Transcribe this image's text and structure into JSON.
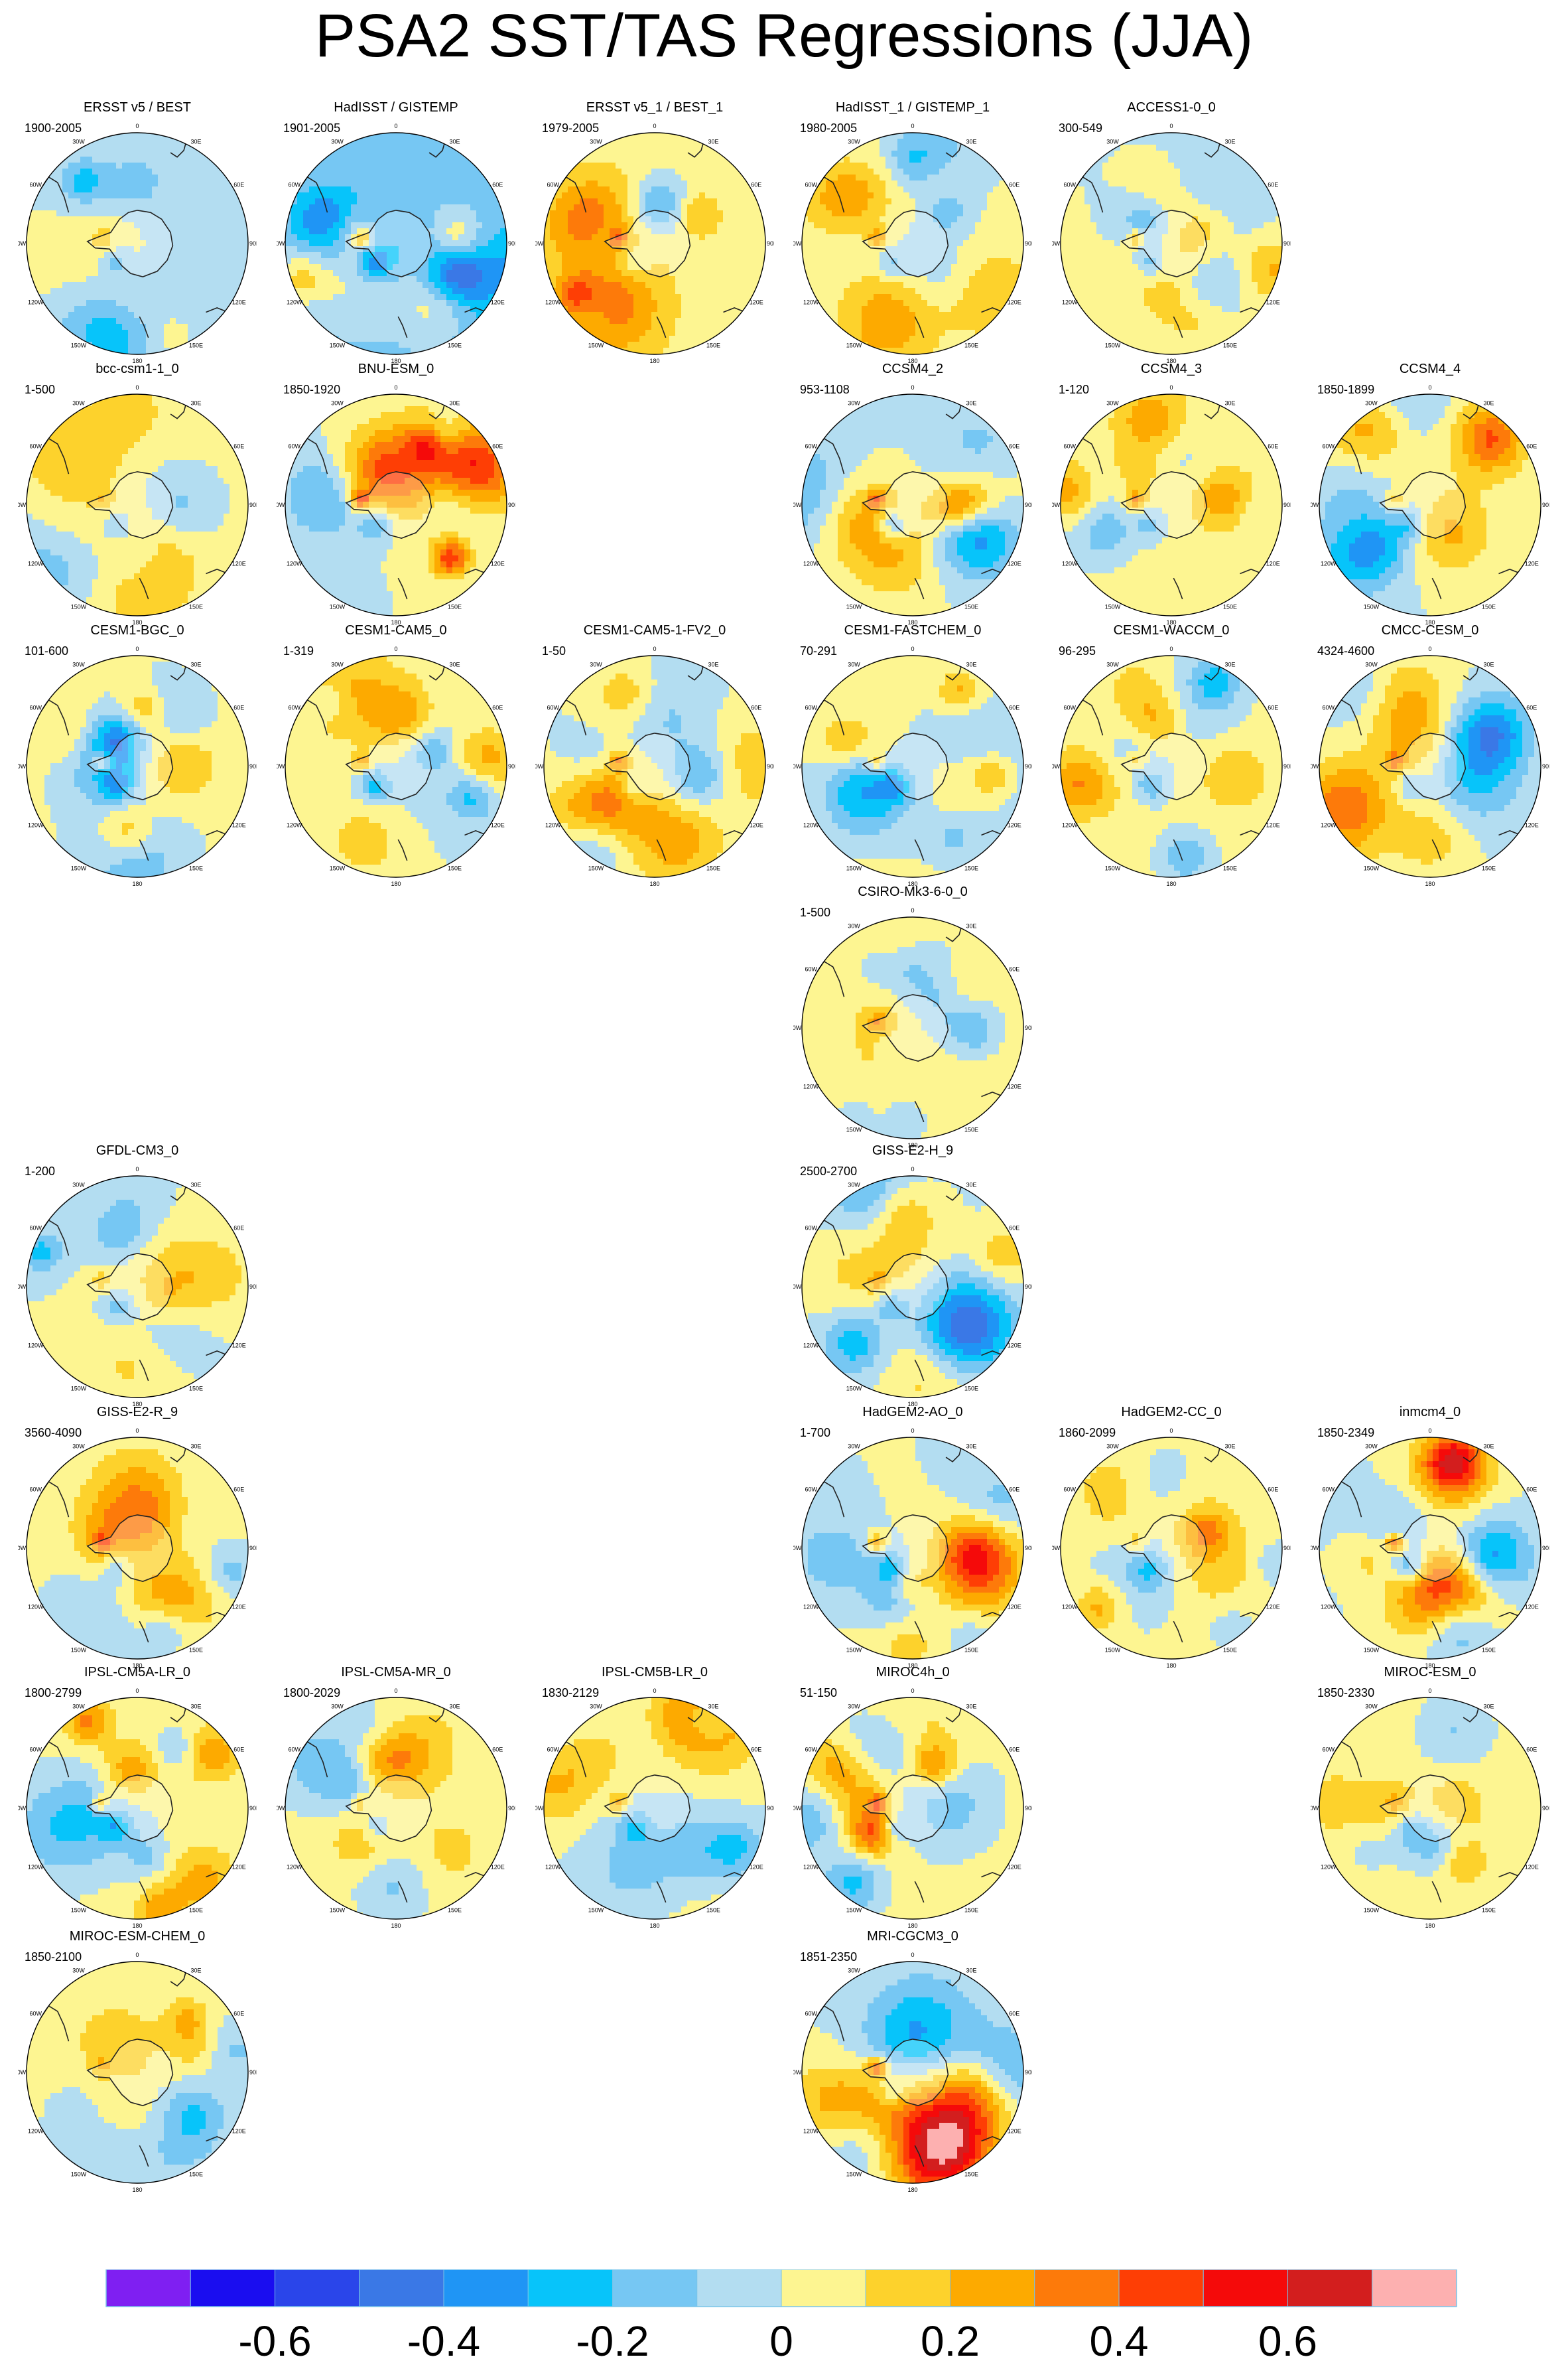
{
  "title": "PSA2 SST/TAS Regressions (JJA)",
  "chart_data": {
    "type": "heatmap",
    "projection": "south-polar-stereographic",
    "title": "PSA2 SST/TAS Regressions (JJA)",
    "lon_labels": [
      "0",
      "30E",
      "60E",
      "90E",
      "120E",
      "150E",
      "180",
      "150W",
      "120W",
      "90W",
      "60W",
      "30W"
    ],
    "colorbar": {
      "tick_labels": [
        "-0.6",
        "-0.4",
        "-0.2",
        "0",
        "0.2",
        "0.4",
        "0.6"
      ],
      "tick_values": [
        -0.6,
        -0.4,
        -0.2,
        0,
        0.2,
        0.4,
        0.6
      ],
      "levels": [
        -0.7,
        -0.6,
        -0.5,
        -0.4,
        -0.3,
        -0.2,
        -0.1,
        0,
        0.1,
        0.2,
        0.3,
        0.4,
        0.5,
        0.6,
        0.7
      ],
      "colors": [
        "#7f1ff2",
        "#1a0df0",
        "#2a45ea",
        "#3a78e6",
        "#1f95f5",
        "#07c4fa",
        "#76c7f3",
        "#b3ddf1",
        "#fdf591",
        "#fdd22c",
        "#fdaa00",
        "#fd7a0a",
        "#fe3e05",
        "#f50a0a",
        "#d31e1e",
        "#fdb0b0"
      ],
      "sep_color": "#78c4e8"
    },
    "panels": [
      {
        "name": "ERSST v5 / BEST",
        "period": "1900-2005",
        "row": 0,
        "col": 0,
        "style": {
          "seed": 3,
          "ampPos": 0.12,
          "ampNeg": -0.2,
          "bias": -0.03
        }
      },
      {
        "name": "HadISST / GISTEMP",
        "period": "1901-2005",
        "row": 0,
        "col": 1,
        "style": {
          "seed": 7,
          "ampPos": 0.3,
          "ampNeg": -0.35,
          "bias": -0.12
        }
      },
      {
        "name": "ERSST v5_1 / BEST_1",
        "period": "1979-2005",
        "row": 0,
        "col": 2,
        "style": {
          "seed": 11,
          "ampPos": 0.28,
          "ampNeg": -0.18,
          "bias": 0.05
        }
      },
      {
        "name": "HadISST_1 / GISTEMP_1",
        "period": "1980-2005",
        "row": 0,
        "col": 3,
        "style": {
          "seed": 13,
          "ampPos": 0.25,
          "ampNeg": -0.2,
          "bias": 0.0
        }
      },
      {
        "name": "ACCESS1-0_0",
        "period": "300-549",
        "row": 0,
        "col": 4,
        "style": {
          "seed": 17,
          "ampPos": 0.25,
          "ampNeg": -0.25,
          "bias": 0.0
        }
      },
      {
        "name": "bcc-csm1-1_0",
        "period": "1-500",
        "row": 1,
        "col": 0,
        "style": {
          "seed": 19,
          "ampPos": 0.18,
          "ampNeg": -0.18,
          "bias": 0.02
        }
      },
      {
        "name": "BNU-ESM_0",
        "period": "1850-1920",
        "row": 1,
        "col": 1,
        "style": {
          "seed": 23,
          "ampPos": 0.45,
          "ampNeg": -0.3,
          "bias": 0.0
        }
      },
      {
        "name": "CCSM4_2",
        "period": "953-1108",
        "row": 1,
        "col": 3,
        "style": {
          "seed": 29,
          "ampPos": 0.3,
          "ampNeg": -0.35,
          "bias": 0.0
        }
      },
      {
        "name": "CCSM4_3",
        "period": "1-120",
        "row": 1,
        "col": 4,
        "style": {
          "seed": 31,
          "ampPos": 0.28,
          "ampNeg": -0.2,
          "bias": 0.04
        }
      },
      {
        "name": "CCSM4_4",
        "period": "1850-1899",
        "row": 1,
        "col": 5,
        "style": {
          "seed": 37,
          "ampPos": 0.22,
          "ampNeg": -0.22,
          "bias": 0.0
        }
      },
      {
        "name": "CESM1-BGC_0",
        "period": "101-600",
        "row": 2,
        "col": 0,
        "style": {
          "seed": 41,
          "ampPos": 0.28,
          "ampNeg": -0.28,
          "bias": 0.02
        }
      },
      {
        "name": "CESM1-CAM5_0",
        "period": "1-319",
        "row": 2,
        "col": 1,
        "style": {
          "seed": 43,
          "ampPos": 0.28,
          "ampNeg": -0.3,
          "bias": 0.0
        }
      },
      {
        "name": "CESM1-CAM5-1-FV2_0",
        "period": "1-50",
        "row": 2,
        "col": 2,
        "style": {
          "seed": 47,
          "ampPos": 0.25,
          "ampNeg": -0.25,
          "bias": 0.0
        }
      },
      {
        "name": "CESM1-FASTCHEM_0",
        "period": "70-291",
        "row": 2,
        "col": 3,
        "style": {
          "seed": 53,
          "ampPos": 0.22,
          "ampNeg": -0.25,
          "bias": 0.02
        }
      },
      {
        "name": "CESM1-WACCM_0",
        "period": "96-295",
        "row": 2,
        "col": 4,
        "style": {
          "seed": 59,
          "ampPos": 0.2,
          "ampNeg": -0.22,
          "bias": 0.02
        }
      },
      {
        "name": "CMCC-CESM_0",
        "period": "4324-4600",
        "row": 2,
        "col": 5,
        "style": {
          "seed": 61,
          "ampPos": 0.25,
          "ampNeg": -0.22,
          "bias": 0.0
        }
      },
      {
        "name": "CSIRO-Mk3-6-0_0",
        "period": "1-500",
        "row": 3,
        "col": 3,
        "style": {
          "seed": 67,
          "ampPos": 0.18,
          "ampNeg": -0.18,
          "bias": 0.04
        }
      },
      {
        "name": "GFDL-CM3_0",
        "period": "1-200",
        "row": 4,
        "col": 0,
        "style": {
          "seed": 71,
          "ampPos": 0.18,
          "ampNeg": -0.22,
          "bias": 0.0
        }
      },
      {
        "name": "GISS-E2-H_9",
        "period": "2500-2700",
        "row": 4,
        "col": 3,
        "style": {
          "seed": 73,
          "ampPos": 0.18,
          "ampNeg": -0.25,
          "bias": -0.01
        }
      },
      {
        "name": "GISS-E2-R_9",
        "period": "3560-4090",
        "row": 5,
        "col": 0,
        "style": {
          "seed": 79,
          "ampPos": 0.25,
          "ampNeg": -0.2,
          "bias": 0.02
        }
      },
      {
        "name": "HadGEM2-AO_0",
        "period": "1-700",
        "row": 5,
        "col": 3,
        "style": {
          "seed": 83,
          "ampPos": 0.3,
          "ampNeg": -0.28,
          "bias": 0.0
        }
      },
      {
        "name": "HadGEM2-CC_0",
        "period": "1860-2099",
        "row": 5,
        "col": 4,
        "style": {
          "seed": 89,
          "ampPos": 0.2,
          "ampNeg": -0.2,
          "bias": 0.02
        }
      },
      {
        "name": "inmcm4_0",
        "period": "1850-2349",
        "row": 5,
        "col": 5,
        "style": {
          "seed": 97,
          "ampPos": 0.45,
          "ampNeg": -0.3,
          "bias": 0.0
        }
      },
      {
        "name": "IPSL-CM5A-LR_0",
        "period": "1800-2799",
        "row": 6,
        "col": 0,
        "style": {
          "seed": 101,
          "ampPos": 0.3,
          "ampNeg": -0.25,
          "bias": 0.03
        }
      },
      {
        "name": "IPSL-CM5A-MR_0",
        "period": "1800-2029",
        "row": 6,
        "col": 1,
        "style": {
          "seed": 103,
          "ampPos": 0.16,
          "ampNeg": -0.18,
          "bias": 0.03
        }
      },
      {
        "name": "IPSL-CM5B-LR_0",
        "period": "1830-2129",
        "row": 6,
        "col": 2,
        "style": {
          "seed": 107,
          "ampPos": 0.28,
          "ampNeg": -0.25,
          "bias": 0.0
        }
      },
      {
        "name": "MIROC4h_0",
        "period": "51-150",
        "row": 6,
        "col": 3,
        "style": {
          "seed": 109,
          "ampPos": 0.3,
          "ampNeg": -0.25,
          "bias": 0.03
        }
      },
      {
        "name": "MIROC-ESM_0",
        "period": "1850-2330",
        "row": 6,
        "col": 5,
        "style": {
          "seed": 113,
          "ampPos": 0.14,
          "ampNeg": -0.16,
          "bias": 0.04
        }
      },
      {
        "name": "MIROC-ESM-CHEM_0",
        "period": "1850-2100",
        "row": 7,
        "col": 0,
        "style": {
          "seed": 127,
          "ampPos": 0.16,
          "ampNeg": -0.16,
          "bias": 0.03
        }
      },
      {
        "name": "MRI-CGCM3_0",
        "period": "1851-2350",
        "row": 7,
        "col": 3,
        "style": {
          "seed": 131,
          "ampPos": 0.4,
          "ampNeg": -0.25,
          "bias": 0.0
        }
      }
    ]
  }
}
